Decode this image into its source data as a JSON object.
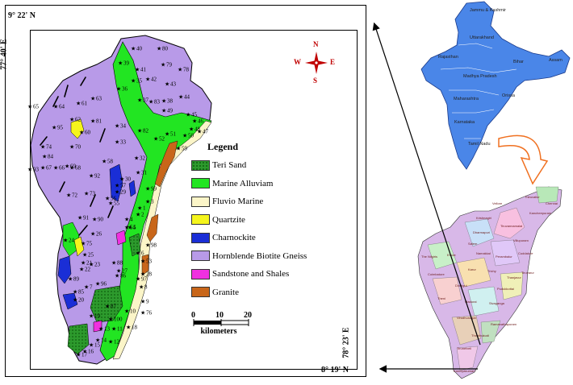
{
  "coordinates": {
    "top": "9° 22' N",
    "bottom": "8° 19' N",
    "left": "77° 40' E",
    "right": "78° 23' E"
  },
  "legend": {
    "title": "Legend",
    "items": [
      {
        "label": "Teri Sand",
        "color": "#2d9a2d",
        "pattern": "dotted"
      },
      {
        "label": "Marine Alluviam",
        "color": "#22e522",
        "pattern": "solid"
      },
      {
        "label": "Fluvio Marine",
        "color": "#fbf5c8",
        "pattern": "solid"
      },
      {
        "label": "Quartzite",
        "color": "#f5f51c",
        "pattern": "solid"
      },
      {
        "label": "Charnockite",
        "color": "#1a2ed6",
        "pattern": "solid"
      },
      {
        "label": "Hornblende Biotite Gneiss",
        "color": "#b89ae8",
        "pattern": "solid"
      },
      {
        "label": "Sandstone and Shales",
        "color": "#f030e0",
        "pattern": "solid"
      },
      {
        "label": "Granite",
        "color": "#c8661a",
        "pattern": "solid"
      }
    ]
  },
  "compass": {
    "n": "N",
    "s": "S",
    "e": "E",
    "w": "W"
  },
  "scale": {
    "ticks": [
      "0",
      "10",
      "20"
    ],
    "unit": "kilometers"
  },
  "sample_sites": [
    "40",
    "80",
    "39",
    "79",
    "41",
    "78",
    "42",
    "35",
    "43",
    "44",
    "36",
    "63",
    "37",
    "38",
    "83",
    "49",
    "45",
    "64",
    "61",
    "46",
    "47",
    "65",
    "62",
    "95",
    "81",
    "34",
    "82",
    "48",
    "60",
    "51",
    "50",
    "74",
    "70",
    "33",
    "52",
    "84",
    "32",
    "59",
    "58",
    "69",
    "67",
    "66",
    "31",
    "93",
    "68",
    "29",
    "30",
    "92",
    "57",
    "56",
    "99",
    "72",
    "73",
    "55",
    "1",
    "3",
    "2",
    "91",
    "90",
    "26",
    "4",
    "54",
    "25",
    "24",
    "75",
    "22",
    "23",
    "5",
    "98",
    "6",
    "21",
    "27",
    "53",
    "88",
    "89",
    "96",
    "86",
    "28",
    "97",
    "7",
    "85",
    "8",
    "9",
    "87",
    "20",
    "100",
    "19",
    "18",
    "10",
    "11",
    "12",
    "76",
    "13",
    "14",
    "15",
    "16",
    "17"
  ],
  "india_states": [
    "Jammu & Kashmir",
    "Uttarakhand",
    "Rajasthan",
    "Bihar",
    "Assam",
    "Madhya Pradesh",
    "Maharashtra",
    "Orissa",
    "Karnataka",
    "Tamil Nadu"
  ],
  "tn_districts": [
    "Thiruvallur",
    "Chennai",
    "Vellore",
    "Kancheepuram",
    "Krishnagiri",
    "Tiruvannamalai",
    "Dharmapuri",
    "Villupuram",
    "Salem",
    "Cuddalore",
    "Erode",
    "Namakkal",
    "Perambalur",
    "The Nilgiris",
    "Coimbatore",
    "Karur",
    "Trichy",
    "Thanjavur",
    "Tiruvarur",
    "Dindigul",
    "Pudukkottai",
    "Theni",
    "Madurai",
    "Sivaganga",
    "Virudhunagar",
    "Ramanathapuram",
    "Thoothukudi",
    "Tirunelveli",
    "Kanniyakumari"
  ],
  "colors": {
    "india_fill": "#4a86e8",
    "arrow_orange": "#f07020",
    "compass_red": "#c00000"
  }
}
